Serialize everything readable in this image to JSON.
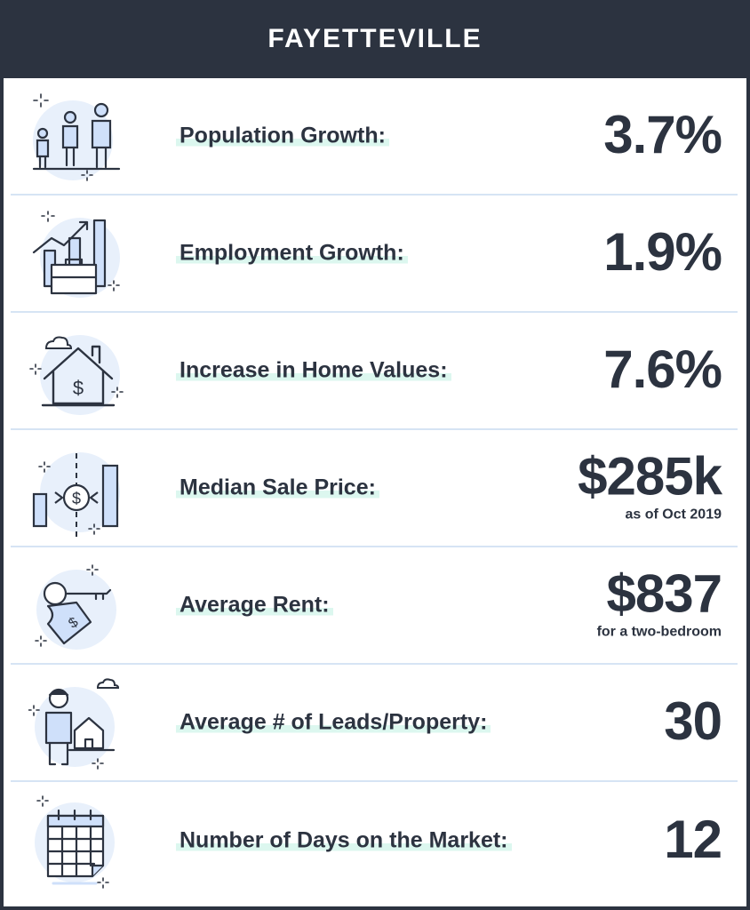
{
  "header": {
    "title": "FAYETTEVILLE"
  },
  "colors": {
    "dark": "#2c3340",
    "accent": "#dcf7ef",
    "icon_bg": "#e8f0fb",
    "icon_fill": "#cfe0fa"
  },
  "stats": [
    {
      "icon": "family-icon",
      "label": "Population Growth:",
      "value": "3.7%",
      "sub": ""
    },
    {
      "icon": "employment-growth-icon",
      "label": "Employment Growth:",
      "value": "1.9%",
      "sub": ""
    },
    {
      "icon": "home-value-icon",
      "label": "Increase in Home Values:",
      "value": "7.6%",
      "sub": ""
    },
    {
      "icon": "sale-price-icon",
      "label": "Median Sale Price:",
      "value": "$285k",
      "sub": "as of Oct 2019"
    },
    {
      "icon": "rent-key-icon",
      "label": "Average Rent:",
      "value": "$837",
      "sub": "for a two-bedroom"
    },
    {
      "icon": "leads-person-icon",
      "label": "Average # of Leads/Property:",
      "value": "30",
      "sub": ""
    },
    {
      "icon": "calendar-icon",
      "label": "Number of Days on the Market:",
      "value": "12",
      "sub": ""
    }
  ]
}
